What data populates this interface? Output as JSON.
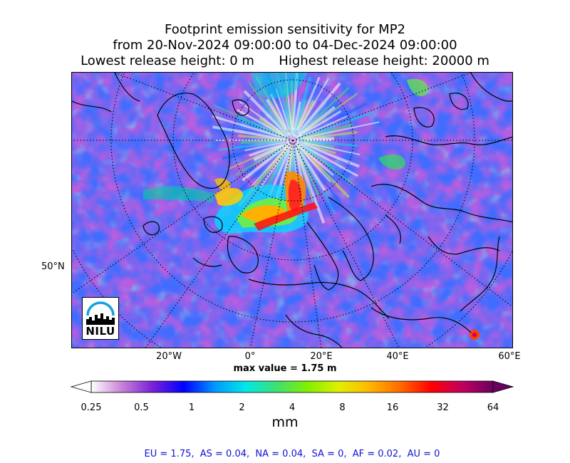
{
  "title": {
    "line1": "Footprint emission sensitivity for MP2",
    "line2": "from 20-Nov-2024 09:00:00 to 04-Dec-2024 09:00:00",
    "line3": "Lowest release height: 0 m      Highest release height: 20000 m"
  },
  "map": {
    "lon_ticks": [
      "20°W",
      "0°",
      "20°E",
      "40°E",
      "60°E"
    ],
    "lat_ticks": [
      "50°N"
    ],
    "max_value_text": "max value = 1.75 m",
    "logo_text": "NILU"
  },
  "colorbar": {
    "ticks": [
      "0.25",
      "0.5",
      "1",
      "2",
      "4",
      "8",
      "16",
      "32",
      "64"
    ],
    "unit": "mm",
    "extend": "both",
    "colors": [
      "#ffffff",
      "#c880d8",
      "#7a1fd8",
      "#0000ff",
      "#0098ff",
      "#00e8e8",
      "#40e070",
      "#80f000",
      "#e0f000",
      "#ffb800",
      "#ff6a00",
      "#ff0000",
      "#c00060",
      "#6a0060"
    ]
  },
  "regions_text": "EU = 1.75,  AS = 0.04,  NA = 0.04,  SA = 0,  AF = 0.02,  AU = 0",
  "chart_data": {
    "type": "heatmap",
    "title": "Footprint emission sensitivity for MP2",
    "subtitle": "from 20-Nov-2024 09:00:00 to 04-Dec-2024 09:00:00",
    "release_heights_m": {
      "lowest": 0,
      "highest": 20000
    },
    "projection": "polar stereographic (north)",
    "color_scale": "log",
    "color_levels_mm": [
      0.25,
      0.5,
      1,
      2,
      4,
      8,
      16,
      32,
      64
    ],
    "unit": "mm",
    "max_value_m": 1.75,
    "region_totals": {
      "EU": 1.75,
      "AS": 0.04,
      "NA": 0.04,
      "SA": 0,
      "AF": 0.02,
      "AU": 0
    }
  }
}
